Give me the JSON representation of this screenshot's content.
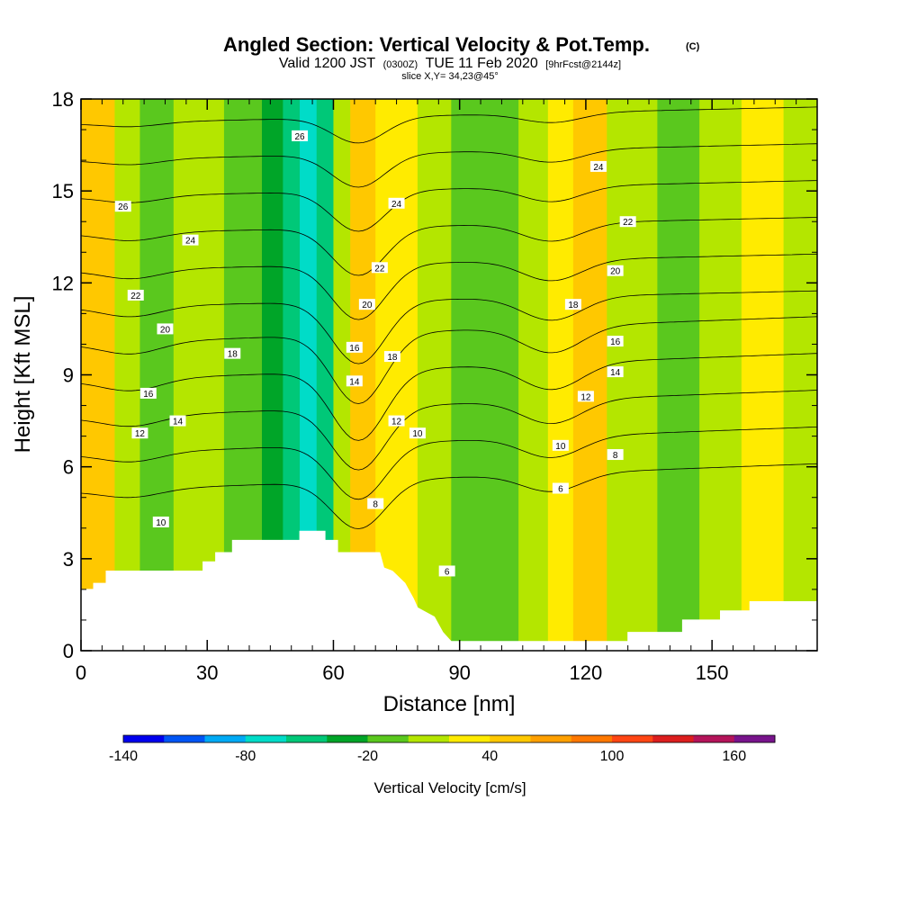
{
  "chart_data": {
    "type": "heatmap",
    "title": "Angled Section: Vertical Velocity & Pot.Temp.",
    "title_mark": "(C)",
    "subtitle": {
      "valid": "Valid 1200 JST",
      "utc": "(0300Z)",
      "date": "TUE 11 Feb 2020",
      "forecast": "[9hrFcst@2144z]"
    },
    "slice_label": "slice X,Y= 34,23@45°",
    "xlabel": "Distance [nm]",
    "ylabel": "Height [Kft MSL]",
    "xlim": [
      0,
      175
    ],
    "ylim": [
      0,
      18
    ],
    "x_ticks": [
      0,
      30,
      60,
      90,
      120,
      150
    ],
    "y_ticks": [
      0,
      3,
      6,
      9,
      12,
      15,
      18
    ],
    "colorbar": {
      "title": "Vertical Velocity [cm/s]",
      "min": -140,
      "max": 180,
      "step": 20,
      "labels": [
        -140,
        -80,
        -20,
        40,
        100,
        160
      ],
      "colors": [
        "#0000ee",
        "#0055f5",
        "#00aaf5",
        "#00dcc8",
        "#00c878",
        "#00a528",
        "#5ac81e",
        "#b4e600",
        "#ffeb00",
        "#ffc800",
        "#ffa000",
        "#ff7800",
        "#ff4614",
        "#dc1e1e",
        "#b4145a",
        "#78148c"
      ]
    },
    "velocity_bands": [
      {
        "x": 0,
        "w": 8,
        "v": 40
      },
      {
        "x": 8,
        "w": 6,
        "v": 0
      },
      {
        "x": 14,
        "w": 8,
        "v": -20
      },
      {
        "x": 22,
        "w": 12,
        "v": 0
      },
      {
        "x": 34,
        "w": 9,
        "v": -20
      },
      {
        "x": 43,
        "w": 5,
        "v": -40
      },
      {
        "x": 48,
        "w": 4,
        "v": -60
      },
      {
        "x": 52,
        "w": 4,
        "v": -80
      },
      {
        "x": 56,
        "w": 4,
        "v": -60
      },
      {
        "x": 60,
        "w": 4,
        "v": 0
      },
      {
        "x": 64,
        "w": 6,
        "v": 40
      },
      {
        "x": 70,
        "w": 10,
        "v": 20
      },
      {
        "x": 80,
        "w": 8,
        "v": 0
      },
      {
        "x": 88,
        "w": 8,
        "v": -20
      },
      {
        "x": 96,
        "w": 8,
        "v": -20
      },
      {
        "x": 104,
        "w": 7,
        "v": 0
      },
      {
        "x": 111,
        "w": 6,
        "v": 20
      },
      {
        "x": 117,
        "w": 8,
        "v": 40
      },
      {
        "x": 125,
        "w": 12,
        "v": 0
      },
      {
        "x": 137,
        "w": 10,
        "v": -20
      },
      {
        "x": 147,
        "w": 10,
        "v": 0
      },
      {
        "x": 157,
        "w": 10,
        "v": 20
      },
      {
        "x": 167,
        "w": 8,
        "v": 0
      }
    ],
    "theta_contours": {
      "levels": [
        6,
        8,
        10,
        12,
        14,
        16,
        18,
        20,
        22,
        24,
        26
      ],
      "labels": [
        {
          "text": "26",
          "x": 52,
          "y": 16.8
        },
        {
          "text": "26",
          "x": 10,
          "y": 14.5
        },
        {
          "text": "24",
          "x": 26,
          "y": 13.4
        },
        {
          "text": "24",
          "x": 75,
          "y": 14.6
        },
        {
          "text": "24",
          "x": 123,
          "y": 15.8
        },
        {
          "text": "22",
          "x": 13,
          "y": 11.6
        },
        {
          "text": "22",
          "x": 71,
          "y": 12.5
        },
        {
          "text": "22",
          "x": 130,
          "y": 14.0
        },
        {
          "text": "20",
          "x": 20,
          "y": 10.5
        },
        {
          "text": "20",
          "x": 68,
          "y": 11.3
        },
        {
          "text": "20",
          "x": 127,
          "y": 12.4
        },
        {
          "text": "18",
          "x": 36,
          "y": 9.7
        },
        {
          "text": "18",
          "x": 74,
          "y": 9.6
        },
        {
          "text": "18",
          "x": 117,
          "y": 11.3
        },
        {
          "text": "16",
          "x": 16,
          "y": 8.4
        },
        {
          "text": "16",
          "x": 65,
          "y": 9.9
        },
        {
          "text": "16",
          "x": 127,
          "y": 10.1
        },
        {
          "text": "14",
          "x": 23,
          "y": 7.5
        },
        {
          "text": "14",
          "x": 65,
          "y": 8.8
        },
        {
          "text": "14",
          "x": 127,
          "y": 9.1
        },
        {
          "text": "12",
          "x": 14,
          "y": 7.1
        },
        {
          "text": "12",
          "x": 75,
          "y": 7.5
        },
        {
          "text": "12",
          "x": 120,
          "y": 8.3
        },
        {
          "text": "10",
          "x": 80,
          "y": 7.1
        },
        {
          "text": "10",
          "x": 114,
          "y": 6.7
        },
        {
          "text": "10",
          "x": 19,
          "y": 4.2
        },
        {
          "text": "8",
          "x": 70,
          "y": 4.8
        },
        {
          "text": "8",
          "x": 127,
          "y": 6.4
        },
        {
          "text": "6",
          "x": 114,
          "y": 5.3
        },
        {
          "text": "6",
          "x": 87,
          "y": 2.6
        }
      ]
    },
    "terrain": [
      [
        0,
        2.0
      ],
      [
        3,
        2.0
      ],
      [
        3,
        2.2
      ],
      [
        6,
        2.2
      ],
      [
        6,
        2.6
      ],
      [
        29,
        2.6
      ],
      [
        29,
        2.9
      ],
      [
        32,
        2.9
      ],
      [
        32,
        3.2
      ],
      [
        36,
        3.2
      ],
      [
        36,
        3.6
      ],
      [
        52,
        3.6
      ],
      [
        52,
        3.9
      ],
      [
        58,
        3.9
      ],
      [
        58,
        3.6
      ],
      [
        61,
        3.6
      ],
      [
        61,
        3.2
      ],
      [
        71,
        3.2
      ],
      [
        72,
        2.7
      ],
      [
        74,
        2.6
      ],
      [
        77,
        2.2
      ],
      [
        79,
        1.7
      ],
      [
        80,
        1.4
      ],
      [
        84,
        1.1
      ],
      [
        86,
        0.6
      ],
      [
        88,
        0.3
      ],
      [
        130,
        0.3
      ],
      [
        130,
        0.6
      ],
      [
        143,
        0.6
      ],
      [
        143,
        1.0
      ],
      [
        152,
        1.0
      ],
      [
        152,
        1.3
      ],
      [
        159,
        1.3
      ],
      [
        159,
        1.6
      ],
      [
        175,
        1.6
      ]
    ]
  }
}
